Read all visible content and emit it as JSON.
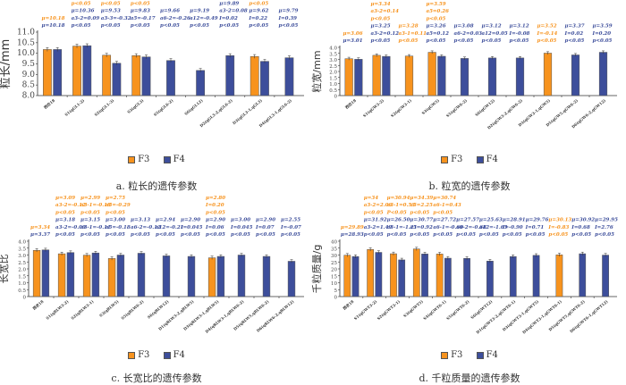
{
  "colors": {
    "F3": "#F7931E",
    "F4": "#3D4E9B",
    "f3_text": "#F7931E",
    "f4_text": "#3D4E9B"
  },
  "legend": {
    "f3": "F3",
    "f4": "F4"
  },
  "chart_data": [
    {
      "id": "a",
      "type": "bar",
      "caption": "a. 粒长的遗传参数",
      "ylabel": "粒长/mm",
      "ylim": [
        8.0,
        11.0
      ],
      "yticks": [
        "8.0",
        "8.5",
        "9.0",
        "9.5",
        "10.0",
        "10.5",
        "11.0"
      ],
      "categories": [
        "西农18",
        "S1(qGL1-2)",
        "S2(qGL1-3)",
        "S3(qGL3)",
        "S5(qGL6-2)",
        "S6(qGL12)",
        "D2(qGL3-2,qGL6-2)",
        "D3(qGL3-1,qGL3)",
        "D4(qGL3-1,qGL6-2)"
      ],
      "series": [
        {
          "name": "F3",
          "values": [
            10.18,
            10.34,
            9.91,
            9.89,
            null,
            null,
            null,
            9.85,
            null
          ]
        },
        {
          "name": "F4",
          "values": [
            10.18,
            10.36,
            9.53,
            9.83,
            9.66,
            9.19,
            9.89,
            9.62,
            9.79
          ]
        }
      ],
      "annotations": [
        {
          "f3": [
            "μ=10.18"
          ],
          "f4": [
            "μ=10.18"
          ]
        },
        {
          "f3": [
            "μ=10.34",
            "a3-2=0.08",
            "p<0.05"
          ],
          "f4": [
            "μ=10.36",
            "a3-2=0.09",
            "p<0.05"
          ]
        },
        {
          "f3": [
            "μ=9.91",
            "a3-3=-0.14",
            "p<0.05"
          ],
          "f4": [
            "μ=9.53",
            "a3-3=-0.32",
            "p<0.05"
          ]
        },
        {
          "f3": [
            "μ=9.89",
            "a5=-0.15",
            "p<0.05"
          ],
          "f4": [
            "μ=9.83",
            "a5=-0.17",
            "p<0.05"
          ]
        },
        {
          "f3": [],
          "f4": [
            "μ=9.66",
            "a6-2=-0.26",
            "p<0.05"
          ]
        },
        {
          "f3": [],
          "f4": [
            "μ=9.19",
            "a12=-0.49",
            "p<0.05"
          ]
        },
        {
          "f3": [],
          "f4": [
            "μ=9.89",
            "a3-2=0.08",
            "I=0.02",
            "p<0.05"
          ]
        },
        {
          "f3": [
            "μ=9.85",
            "I=0.12",
            "p<0.05"
          ],
          "f4": [
            "μ=9.62",
            "I=0.22",
            "p<0.05"
          ]
        },
        {
          "f3": [],
          "f4": [
            "μ=9.79",
            "I=0.39",
            "p<0.05"
          ]
        }
      ],
      "legend_position": "bottom"
    },
    {
      "id": "b",
      "type": "bar",
      "caption": "b. 粒宽的遗传参数",
      "ylabel": "粒宽/mm",
      "ylim": [
        0,
        4.0
      ],
      "yticks": [
        "0",
        "0.5",
        "1.0",
        "1.5",
        "2.0",
        "2.5",
        "3.0",
        "3.5",
        "4.0"
      ],
      "categories": [
        "西农18",
        "S1(qGW3-2)",
        "S2(qGW3-1)",
        "S3(qGW5)",
        "S5(qGW6-2)",
        "S6(qGW12)",
        "D2(qGW3-2,qGW6-2)",
        "D3(qGW3-1,qGW5)",
        "D5(qGW5,qGW6-2)",
        "D6(qGW6-2,qGW12)"
      ],
      "series": [
        {
          "name": "F3",
          "values": [
            3.06,
            3.34,
            3.28,
            3.59,
            null,
            null,
            null,
            3.52,
            null,
            null
          ]
        },
        {
          "name": "F4",
          "values": [
            3.01,
            3.25,
            null,
            3.26,
            3.08,
            3.12,
            3.12,
            null,
            3.37,
            3.59
          ]
        }
      ],
      "annotations": [
        {
          "f3": [
            "μ=3.06"
          ],
          "f4": [
            "μ=3.01"
          ]
        },
        {
          "f3": [
            "μ=3.34",
            "a3-2=0.14",
            "p<0.05"
          ],
          "f4": [
            "μ=3.25",
            "a3-2=0.12",
            "p<0.05"
          ]
        },
        {
          "f3": [
            "μ=3.28",
            "a3-1=0.11",
            "p<0.05"
          ],
          "f4": []
        },
        {
          "f3": [
            "μ=3.59",
            "a5=0.26",
            "p<0.05"
          ],
          "f4": [
            "μ=3.26",
            "a5=0.12",
            "p<0.05"
          ]
        },
        {
          "f3": [],
          "f4": [
            "μ=3.08",
            "a6-2=0.03",
            "p<0.05"
          ]
        },
        {
          "f3": [],
          "f4": [
            "μ=3.12",
            "a12=0.05",
            "p<0.05"
          ]
        },
        {
          "f3": [],
          "f4": [
            "μ=3.12",
            "I=-0.08",
            "p<0.05"
          ]
        },
        {
          "f3": [
            "μ=3.52",
            "I=-0.14",
            "p<0.05"
          ],
          "f4": []
        },
        {
          "f3": [],
          "f4": [
            "μ=3.37",
            "I=0.02",
            "p<0.05"
          ]
        },
        {
          "f3": [],
          "f4": [
            "μ=3.59",
            "I=0.20",
            "p<0.05"
          ]
        }
      ],
      "legend_position": "bottom"
    },
    {
      "id": "c",
      "type": "bar",
      "caption": "c. 长宽比的遗传参数",
      "ylabel": "长宽比",
      "ylim": [
        0,
        4.0
      ],
      "yticks": [
        "0",
        "0.5",
        "1.0",
        "1.5",
        "2.0",
        "2.5",
        "3.0",
        "3.5",
        "4.0"
      ],
      "categories": [
        "西农18",
        "S1(qRLW3-2)",
        "S2(qRLW3-1)",
        "S3(qRLW5)",
        "S5(qRLW6-2)",
        "S6(qRLW12)",
        "D1(qRLW3-2,qRLW5)",
        "D3(qRLW3-1,qRLW5)",
        "D4(qRLW3-1,qRLW6-2)",
        "D5(qRLW5,qRLW6-2)",
        "D6(qRLW6-2,qRLW12)"
      ],
      "series": [
        {
          "name": "F3",
          "values": [
            3.34,
            3.09,
            2.99,
            2.75,
            null,
            null,
            null,
            2.8,
            null,
            null,
            null
          ]
        },
        {
          "name": "F4",
          "values": [
            3.37,
            3.18,
            3.15,
            3.0,
            3.13,
            2.94,
            2.9,
            2.9,
            3.0,
            2.9,
            2.55
          ]
        }
      ],
      "annotations": [
        {
          "f3": [
            "μ=3.34"
          ],
          "f4": [
            "μ=3.37"
          ]
        },
        {
          "f3": [
            "μ=3.09",
            "a3-2=-0.12",
            "p<0.05"
          ],
          "f4": [
            "μ=3.18",
            "a3-2=-0.09",
            "p<0.05"
          ]
        },
        {
          "f3": [
            "μ=2.99",
            "a3-1=-0.18",
            "p<0.05"
          ],
          "f4": [
            "μ=3.15",
            "a3-1=-0.11",
            "p<0.05"
          ]
        },
        {
          "f3": [
            "μ=2.75",
            "a5=-0.29",
            "p<0.05"
          ],
          "f4": [
            "μ=3.00",
            "a5=-0.18",
            "p<0.05"
          ]
        },
        {
          "f3": [],
          "f4": [
            "μ=3.13",
            "a6-2=-0.12",
            "p<0.05"
          ]
        },
        {
          "f3": [],
          "f4": [
            "μ=2.94",
            "a12=-0.21",
            "p<0.05"
          ]
        },
        {
          "f3": [],
          "f4": [
            "μ=2.90",
            "I=0.045",
            "p<0.05"
          ]
        },
        {
          "f3": [
            "μ=2.80",
            "I=0.20",
            "p<0.05"
          ],
          "f4": [
            "μ=2.90",
            "I=0.06",
            "p<0.05"
          ]
        },
        {
          "f3": [],
          "f4": [
            "μ=3.00",
            "I=0.045",
            "p<0.05"
          ]
        },
        {
          "f3": [],
          "f4": [
            "μ=2.90",
            "I=0.07",
            "p<0.05"
          ]
        },
        {
          "f3": [],
          "f4": [
            "μ=2.55",
            "I=-0.07",
            "p<0.05"
          ]
        }
      ],
      "legend_position": "bottom"
    },
    {
      "id": "d",
      "type": "bar",
      "caption": "d. 千粒质量的遗传参数",
      "ylabel": "千粒质量/g",
      "ylim": [
        0,
        40
      ],
      "yticks": [
        "0",
        "5",
        "10",
        "15",
        "20",
        "25",
        "30",
        "35",
        "40"
      ],
      "categories": [
        "西农18",
        "S1(qGWT3-2)",
        "S2(qGWT3-1)",
        "S3(qGWT5)",
        "S4(qGWT6-1)",
        "S5(qGWT6-2)",
        "S6(qGWT12)",
        "D1(qGWT3-2,qGWT6-1)",
        "D3(qGWT3-1,qGWT5)",
        "D4(qGWT3-1,qGWT6-1)",
        "D5(qGWT5,qGWT6-2)",
        "D6(qGWT6-1,qGWT12)"
      ],
      "series": [
        {
          "name": "F3",
          "values": [
            29.89,
            34.0,
            30.94,
            34.39,
            30.74,
            null,
            null,
            null,
            null,
            30.13,
            null,
            null
          ]
        },
        {
          "name": "F4",
          "values": [
            28.93,
            31.92,
            26.5,
            30.77,
            27.72,
            27.57,
            25.63,
            28.91,
            29.76,
            null,
            30.92,
            29.95
          ]
        }
      ],
      "annotations": [
        {
          "f3": [
            "μ=29.89"
          ],
          "f4": [
            "μ=28.93"
          ]
        },
        {
          "f3": [
            "μ=34",
            "a3-2=2.06",
            "p<0.05"
          ],
          "f4": [
            "μ=31.92",
            "a3-2=1.49",
            "p<0.05"
          ]
        },
        {
          "f3": [
            "μ=30.94",
            "a3-1=0.53",
            "P<0.05"
          ],
          "f4": [
            "μ=26.50",
            "a3-1=-1.21",
            "p<0.05"
          ]
        },
        {
          "f3": [
            "μ=34.39",
            "a5=2.25",
            "p<0.05"
          ],
          "f4": [
            "μ=30.77",
            "a5=0.92",
            "p<0.05"
          ]
        },
        {
          "f3": [
            "μ=30.74",
            "a6-1=0.43",
            "p<0.05"
          ],
          "f4": [
            "μ=27.72",
            "a6-1=-0.60",
            "p<0.05"
          ]
        },
        {
          "f3": [],
          "f4": [
            "μ=27.57",
            "a6-2=-0.68",
            "p<0.05"
          ]
        },
        {
          "f3": [],
          "f4": [
            "μ=25.63",
            "a12=-1.65",
            "p<0.05"
          ]
        },
        {
          "f3": [],
          "f4": [
            "μ=28.91",
            "I=-0.90",
            "p<0.05"
          ]
        },
        {
          "f3": [],
          "f4": [
            "μ=29.76",
            "I=0.71",
            "p<0.05"
          ]
        },
        {
          "f3": [
            "μ=30.13",
            "I=-0.83",
            "p<0.05"
          ],
          "f4": []
        },
        {
          "f3": [],
          "f4": [
            "μ=30.92",
            "I=0.68",
            "p<0.05"
          ]
        },
        {
          "f3": [],
          "f4": [
            "μ=29.95",
            "I=2.76",
            "p<0.05"
          ]
        }
      ],
      "legend_position": "bottom"
    }
  ]
}
